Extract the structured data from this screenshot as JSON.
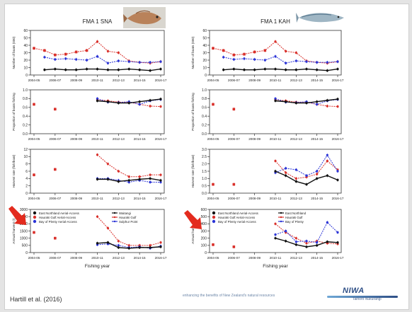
{
  "footer": {
    "citation": "Hartill et al. (2016)",
    "tagline": "enhancing the benefits of New Zealand's natural resources",
    "logo_text": "NIWA",
    "logo_sub": "Taihoro Nukurangi"
  },
  "colors": {
    "black": "#111111",
    "red": "#d9302b",
    "blue": "#2b34d6"
  },
  "icons": [
    "snapper-fish-image",
    "kahawai-fish-image",
    "red-arrow-icon"
  ],
  "chart_data": [
    {
      "type": "line",
      "panel": "snapper-boats",
      "title": "FMA 1 SNA",
      "ylabel": "Number of boats (000)",
      "x": [
        "2004-05",
        "2005-06",
        "2006-07",
        "2007-08",
        "2008-09",
        "2009-10",
        "2010-11",
        "2011-12",
        "2012-13",
        "2013-14",
        "2014-15",
        "2015-16",
        "2016-17"
      ],
      "xticks": [
        "2004-05",
        "2006-07",
        "2008-09",
        "2010-11",
        "2012-13",
        "2014-15",
        "2016-17"
      ],
      "ylim": [
        0,
        60
      ],
      "yticks": [
        0,
        10,
        20,
        30,
        40,
        50,
        60
      ],
      "series": [
        {
          "color": "red",
          "values": [
            36,
            33,
            27,
            28,
            31,
            33,
            45,
            32,
            30,
            19,
            17,
            16,
            18
          ]
        },
        {
          "color": "blue",
          "values": [
            null,
            24,
            21,
            22,
            21,
            20,
            25,
            16,
            19,
            18,
            17,
            17,
            18
          ]
        },
        {
          "color": "black",
          "values": [
            null,
            7,
            8,
            7,
            7,
            8,
            8,
            7,
            7,
            8,
            7,
            6,
            8
          ]
        }
      ]
    },
    {
      "type": "line",
      "panel": "snapper-proportion",
      "ylabel": "Proportion of boats fishing",
      "x": [
        "2004-05",
        "2005-06",
        "2006-07",
        "2007-08",
        "2008-09",
        "2009-10",
        "2010-11",
        "2011-12",
        "2012-13",
        "2013-14",
        "2014-15",
        "2015-16",
        "2016-17"
      ],
      "xticks": [
        "2004-05",
        "2006-07",
        "2008-09",
        "2010-11",
        "2012-13",
        "2014-15",
        "2016-17"
      ],
      "ylim": [
        0,
        1
      ],
      "yticks": [
        "0.0",
        "0.2",
        "0.4",
        "0.6",
        "0.8",
        "1.0"
      ],
      "series": [
        {
          "color": "red",
          "values": [
            0.67,
            null,
            0.56,
            null,
            null,
            null,
            0.78,
            0.75,
            0.72,
            0.72,
            0.67,
            0.63,
            0.62
          ]
        },
        {
          "color": "blue",
          "values": [
            null,
            null,
            null,
            null,
            null,
            null,
            0.8,
            0.72,
            0.71,
            0.73,
            0.67,
            0.75,
            0.78
          ]
        },
        {
          "color": "black",
          "values": [
            null,
            null,
            null,
            null,
            null,
            null,
            0.75,
            0.73,
            0.7,
            0.7,
            0.73,
            0.76,
            0.79
          ]
        }
      ]
    },
    {
      "type": "line",
      "panel": "snapper-harvest-rate",
      "ylabel": "Harvest rate (fish/boat)",
      "x": [
        "2004-05",
        "2005-06",
        "2006-07",
        "2007-08",
        "2008-09",
        "2009-10",
        "2010-11",
        "2011-12",
        "2012-13",
        "2013-14",
        "2014-15",
        "2015-16",
        "2016-17"
      ],
      "xticks": [
        "2004-05",
        "2006-07",
        "2008-09",
        "2010-11",
        "2012-13",
        "2014-15",
        "2016-17"
      ],
      "ylim": [
        0,
        12
      ],
      "yticks": [
        0,
        2,
        4,
        6,
        8,
        10,
        12
      ],
      "series": [
        {
          "color": "red",
          "values": [
            5,
            null,
            6.5,
            null,
            null,
            null,
            10.5,
            8,
            6,
            4.5,
            4.5,
            5,
            5
          ]
        },
        {
          "color": "blue",
          "values": [
            null,
            null,
            null,
            null,
            null,
            null,
            4,
            4,
            3.5,
            3,
            3.5,
            3,
            3
          ]
        },
        {
          "color": "black",
          "values": [
            null,
            null,
            null,
            null,
            null,
            null,
            3.8,
            3.8,
            3.2,
            3.5,
            3.8,
            4,
            3.5
          ]
        }
      ]
    },
    {
      "type": "line",
      "panel": "snapper-annual-harvest",
      "ylabel": "Annual harvest (t)",
      "xlabel": "Fishing year",
      "x": [
        "2004-05",
        "2005-06",
        "2006-07",
        "2007-08",
        "2008-09",
        "2009-10",
        "2010-11",
        "2011-12",
        "2012-13",
        "2013-14",
        "2014-15",
        "2015-16",
        "2016-17"
      ],
      "xticks": [
        "2004-05",
        "2006-07",
        "2008-09",
        "2010-11",
        "2012-13",
        "2014-15",
        "2016-17"
      ],
      "ylim": [
        0,
        3000
      ],
      "yticks": [
        0,
        500,
        1000,
        1500,
        2000,
        2500,
        3000
      ],
      "legend": [
        {
          "label": "East Northland Aerial-Access",
          "color": "black",
          "style": "point"
        },
        {
          "label": "Hauraki Gulf Aerial-Access",
          "color": "red",
          "style": "point"
        },
        {
          "label": "Bay of Plenty Aerial-Access",
          "color": "blue",
          "style": "point"
        },
        {
          "label": "Waitangi",
          "color": "black",
          "style": "line"
        },
        {
          "label": "Hauraki Gulf",
          "color": "red",
          "style": "line"
        },
        {
          "label": "Sulphur Point",
          "color": "blue",
          "style": "line"
        }
      ],
      "series": [
        {
          "color": "red",
          "values": [
            1400,
            null,
            1000,
            null,
            null,
            null,
            2500,
            1700,
            800,
            500,
            500,
            500,
            700
          ]
        },
        {
          "color": "blue",
          "values": [
            null,
            null,
            null,
            null,
            null,
            null,
            550,
            600,
            500,
            350,
            400,
            300,
            450
          ]
        },
        {
          "color": "black",
          "values": [
            null,
            null,
            null,
            null,
            null,
            null,
            650,
            700,
            350,
            300,
            350,
            350,
            400
          ]
        }
      ]
    },
    {
      "type": "line",
      "panel": "kahawai-boats",
      "title": "FMA 1 KAH",
      "ylabel": "Number of boats (000)",
      "x": [
        "2004-05",
        "2005-06",
        "2006-07",
        "2007-08",
        "2008-09",
        "2009-10",
        "2010-11",
        "2011-12",
        "2012-13",
        "2013-14",
        "2014-15",
        "2015-16",
        "2016-17"
      ],
      "xticks": [
        "2004-05",
        "2006-07",
        "2008-09",
        "2010-11",
        "2012-13",
        "2014-15",
        "2016-17"
      ],
      "ylim": [
        0,
        60
      ],
      "yticks": [
        0,
        10,
        20,
        30,
        40,
        50,
        60
      ],
      "series": [
        {
          "color": "red",
          "values": [
            36,
            33,
            27,
            28,
            31,
            33,
            45,
            32,
            30,
            19,
            17,
            16,
            18
          ]
        },
        {
          "color": "blue",
          "values": [
            null,
            24,
            21,
            22,
            21,
            20,
            25,
            16,
            19,
            18,
            17,
            17,
            18
          ]
        },
        {
          "color": "black",
          "values": [
            null,
            7,
            8,
            7,
            7,
            8,
            8,
            7,
            7,
            8,
            7,
            6,
            8
          ]
        }
      ]
    },
    {
      "type": "line",
      "panel": "kahawai-proportion",
      "ylabel": "Proportion of boats fishing",
      "x": [
        "2004-05",
        "2005-06",
        "2006-07",
        "2007-08",
        "2008-09",
        "2009-10",
        "2010-11",
        "2011-12",
        "2012-13",
        "2013-14",
        "2014-15",
        "2015-16",
        "2016-17"
      ],
      "xticks": [
        "2004-05",
        "2006-07",
        "2008-09",
        "2010-11",
        "2012-13",
        "2014-15",
        "2016-17"
      ],
      "ylim": [
        0,
        1
      ],
      "yticks": [
        "0.0",
        "0.2",
        "0.4",
        "0.6",
        "0.8",
        "1.0"
      ],
      "series": [
        {
          "color": "red",
          "values": [
            0.67,
            null,
            0.56,
            null,
            null,
            null,
            0.78,
            0.75,
            0.72,
            0.72,
            0.67,
            0.63,
            0.62
          ]
        },
        {
          "color": "blue",
          "values": [
            null,
            null,
            null,
            null,
            null,
            null,
            0.8,
            0.72,
            0.71,
            0.73,
            0.67,
            0.75,
            0.78
          ]
        },
        {
          "color": "black",
          "values": [
            null,
            null,
            null,
            null,
            null,
            null,
            0.75,
            0.73,
            0.7,
            0.7,
            0.73,
            0.76,
            0.79
          ]
        }
      ]
    },
    {
      "type": "line",
      "panel": "kahawai-harvest-rate",
      "ylabel": "Harvest rate (fish/boat)",
      "x": [
        "2004-05",
        "2005-06",
        "2006-07",
        "2007-08",
        "2008-09",
        "2009-10",
        "2010-11",
        "2011-12",
        "2012-13",
        "2013-14",
        "2014-15",
        "2015-16",
        "2016-17"
      ],
      "xticks": [
        "2004-05",
        "2006-07",
        "2008-09",
        "2010-11",
        "2012-13",
        "2014-15",
        "2016-17"
      ],
      "ylim": [
        0,
        3
      ],
      "yticks": [
        "0.0",
        "0.5",
        "1.0",
        "1.5",
        "2.0",
        "2.5",
        "3.0"
      ],
      "series": [
        {
          "color": "red",
          "values": [
            0.6,
            null,
            0.6,
            null,
            null,
            null,
            2.2,
            1.4,
            1.0,
            1.1,
            1.3,
            2.2,
            1.6
          ]
        },
        {
          "color": "blue",
          "values": [
            null,
            null,
            null,
            null,
            null,
            null,
            1.4,
            1.7,
            1.6,
            1.2,
            1.5,
            2.6,
            1.5
          ]
        },
        {
          "color": "black",
          "values": [
            null,
            null,
            null,
            null,
            null,
            null,
            1.5,
            1.2,
            0.8,
            0.6,
            1.0,
            1.2,
            0.9
          ]
        }
      ]
    },
    {
      "type": "line",
      "panel": "kahawai-annual-harvest",
      "ylabel": "Annual harvest (t)",
      "xlabel": "Fishing year",
      "x": [
        "2004-05",
        "2005-06",
        "2006-07",
        "2007-08",
        "2008-09",
        "2009-10",
        "2010-11",
        "2011-12",
        "2012-13",
        "2013-14",
        "2014-15",
        "2015-16",
        "2016-17"
      ],
      "xticks": [
        "2004-05",
        "2006-07",
        "2008-09",
        "2010-11",
        "2012-13",
        "2014-15",
        "2016-17"
      ],
      "ylim": [
        0,
        600
      ],
      "yticks": [
        0,
        100,
        200,
        300,
        400,
        500,
        600
      ],
      "legend": [
        {
          "label": "East Northland Aerial-Access",
          "color": "black",
          "style": "point"
        },
        {
          "label": "Hauraki Gulf Aerial-Access",
          "color": "red",
          "style": "point"
        },
        {
          "label": "Bay of Plenty Aerial-Access",
          "color": "blue",
          "style": "point"
        },
        {
          "label": "East Northland",
          "color": "black",
          "style": "line"
        },
        {
          "label": "Hauraki Gulf",
          "color": "red",
          "style": "line"
        },
        {
          "label": "Bay of Plenty",
          "color": "blue",
          "style": "line"
        }
      ],
      "series": [
        {
          "color": "red",
          "values": [
            110,
            null,
            80,
            null,
            null,
            null,
            400,
            280,
            200,
            130,
            160,
            130,
            120
          ]
        },
        {
          "color": "blue",
          "values": [
            null,
            null,
            null,
            null,
            null,
            null,
            250,
            300,
            150,
            160,
            140,
            420,
            280
          ]
        },
        {
          "color": "black",
          "values": [
            null,
            null,
            null,
            null,
            null,
            null,
            200,
            160,
            110,
            80,
            100,
            150,
            140
          ]
        }
      ]
    }
  ]
}
